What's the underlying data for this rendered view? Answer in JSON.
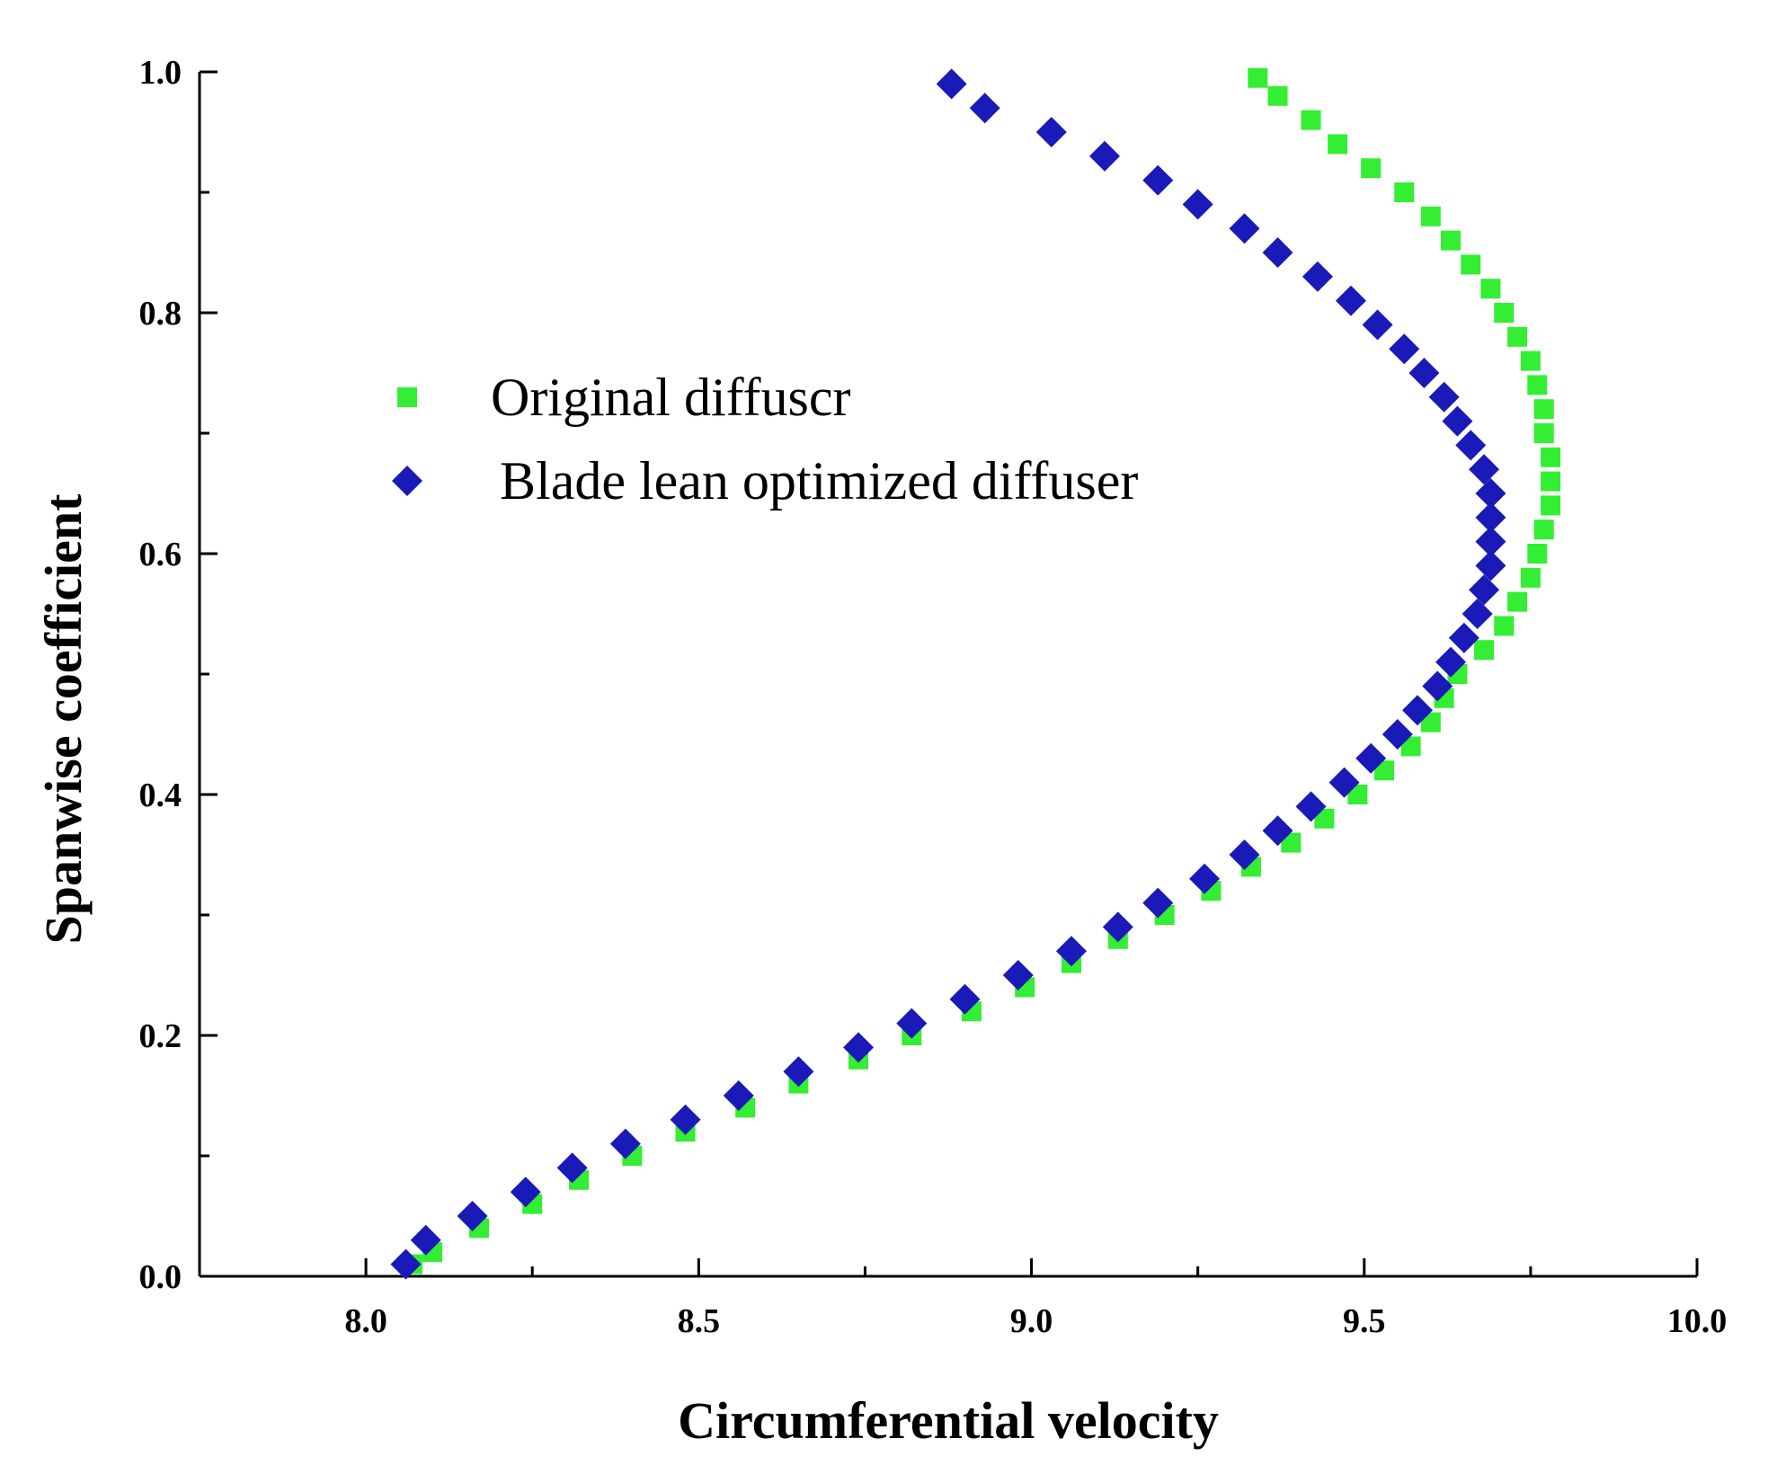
{
  "chart_data": {
    "type": "scatter",
    "title": "",
    "xlabel": "Circumferential velocity",
    "ylabel": "Spanwise coefficient",
    "xlim": [
      7.75,
      10.0
    ],
    "ylim": [
      0.0,
      1.0
    ],
    "x_ticks": [
      "8.0",
      "8.5",
      "9.0",
      "9.5",
      "10.0"
    ],
    "y_ticks": [
      "0.0",
      "0.2",
      "0.4",
      "0.6",
      "0.8",
      "1.0"
    ],
    "grid": false,
    "legend_position": "upper-left-center",
    "series": [
      {
        "name": "Original diffuscr",
        "marker": "square",
        "color": "#33ee33",
        "points": [
          [
            8.07,
            0.01
          ],
          [
            8.1,
            0.02
          ],
          [
            8.17,
            0.04
          ],
          [
            8.25,
            0.06
          ],
          [
            8.32,
            0.08
          ],
          [
            8.4,
            0.1
          ],
          [
            8.48,
            0.12
          ],
          [
            8.57,
            0.14
          ],
          [
            8.65,
            0.16
          ],
          [
            8.74,
            0.18
          ],
          [
            8.82,
            0.2
          ],
          [
            8.91,
            0.22
          ],
          [
            8.99,
            0.24
          ],
          [
            9.06,
            0.26
          ],
          [
            9.13,
            0.28
          ],
          [
            9.2,
            0.3
          ],
          [
            9.27,
            0.32
          ],
          [
            9.33,
            0.34
          ],
          [
            9.39,
            0.36
          ],
          [
            9.44,
            0.38
          ],
          [
            9.49,
            0.4
          ],
          [
            9.53,
            0.42
          ],
          [
            9.57,
            0.44
          ],
          [
            9.6,
            0.46
          ],
          [
            9.62,
            0.48
          ],
          [
            9.64,
            0.5
          ],
          [
            9.68,
            0.52
          ],
          [
            9.71,
            0.54
          ],
          [
            9.73,
            0.56
          ],
          [
            9.75,
            0.58
          ],
          [
            9.76,
            0.6
          ],
          [
            9.77,
            0.62
          ],
          [
            9.78,
            0.64
          ],
          [
            9.78,
            0.66
          ],
          [
            9.78,
            0.68
          ],
          [
            9.77,
            0.7
          ],
          [
            9.77,
            0.72
          ],
          [
            9.76,
            0.74
          ],
          [
            9.75,
            0.76
          ],
          [
            9.73,
            0.78
          ],
          [
            9.71,
            0.8
          ],
          [
            9.69,
            0.82
          ],
          [
            9.66,
            0.84
          ],
          [
            9.63,
            0.86
          ],
          [
            9.6,
            0.88
          ],
          [
            9.56,
            0.9
          ],
          [
            9.51,
            0.92
          ],
          [
            9.46,
            0.94
          ],
          [
            9.42,
            0.96
          ],
          [
            9.37,
            0.98
          ],
          [
            9.34,
            0.995
          ]
        ]
      },
      {
        "name": "Blade lean optimized diffuser",
        "marker": "diamond",
        "color": "#1a1ab8",
        "points": [
          [
            8.06,
            0.01
          ],
          [
            8.09,
            0.03
          ],
          [
            8.16,
            0.05
          ],
          [
            8.24,
            0.07
          ],
          [
            8.31,
            0.09
          ],
          [
            8.39,
            0.11
          ],
          [
            8.48,
            0.13
          ],
          [
            8.56,
            0.15
          ],
          [
            8.65,
            0.17
          ],
          [
            8.74,
            0.19
          ],
          [
            8.82,
            0.21
          ],
          [
            8.9,
            0.23
          ],
          [
            8.98,
            0.25
          ],
          [
            9.06,
            0.27
          ],
          [
            9.13,
            0.29
          ],
          [
            9.19,
            0.31
          ],
          [
            9.26,
            0.33
          ],
          [
            9.32,
            0.35
          ],
          [
            9.37,
            0.37
          ],
          [
            9.42,
            0.39
          ],
          [
            9.47,
            0.41
          ],
          [
            9.51,
            0.43
          ],
          [
            9.55,
            0.45
          ],
          [
            9.58,
            0.47
          ],
          [
            9.61,
            0.49
          ],
          [
            9.63,
            0.51
          ],
          [
            9.65,
            0.53
          ],
          [
            9.67,
            0.55
          ],
          [
            9.68,
            0.57
          ],
          [
            9.69,
            0.59
          ],
          [
            9.69,
            0.61
          ],
          [
            9.69,
            0.63
          ],
          [
            9.69,
            0.65
          ],
          [
            9.68,
            0.67
          ],
          [
            9.66,
            0.69
          ],
          [
            9.64,
            0.71
          ],
          [
            9.62,
            0.73
          ],
          [
            9.59,
            0.75
          ],
          [
            9.56,
            0.77
          ],
          [
            9.52,
            0.79
          ],
          [
            9.48,
            0.81
          ],
          [
            9.43,
            0.83
          ],
          [
            9.37,
            0.85
          ],
          [
            9.32,
            0.87
          ],
          [
            9.25,
            0.89
          ],
          [
            9.19,
            0.91
          ],
          [
            9.11,
            0.93
          ],
          [
            9.03,
            0.95
          ],
          [
            8.93,
            0.97
          ],
          [
            8.88,
            0.99
          ]
        ]
      }
    ]
  }
}
